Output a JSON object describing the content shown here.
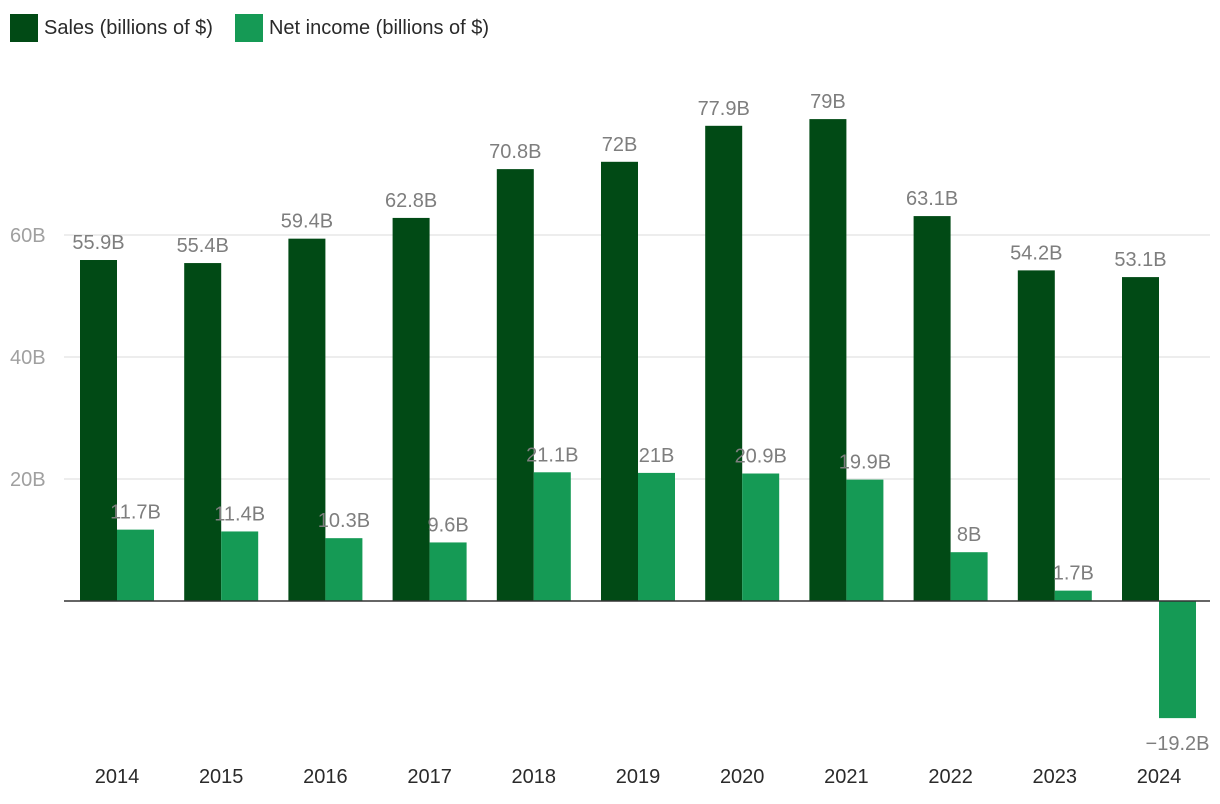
{
  "chart_data": {
    "type": "bar",
    "categories": [
      "2014",
      "2015",
      "2016",
      "2017",
      "2018",
      "2019",
      "2020",
      "2021",
      "2022",
      "2023",
      "2024"
    ],
    "series": [
      {
        "name": "Sales (billions of $)",
        "color": "#014a15",
        "values": [
          55.9,
          55.4,
          59.4,
          62.8,
          70.8,
          72,
          77.9,
          79,
          63.1,
          54.2,
          53.1
        ],
        "labels": [
          "55.9B",
          "55.4B",
          "59.4B",
          "62.8B",
          "70.8B",
          "72B",
          "77.9B",
          "79B",
          "63.1B",
          "54.2B",
          "53.1B"
        ]
      },
      {
        "name": "Net income (billions of $)",
        "color": "#159a55",
        "values": [
          11.7,
          11.4,
          10.3,
          9.6,
          21.1,
          21,
          20.9,
          19.9,
          8,
          1.7,
          -19.2
        ],
        "labels": [
          "11.7B",
          "11.4B",
          "10.3B",
          "9.6B",
          "21.1B",
          "21B",
          "20.9B",
          "19.9B",
          "8B",
          "1.7B",
          "−19.2B"
        ]
      }
    ],
    "yticks": [
      {
        "value": 20,
        "label": "20B"
      },
      {
        "value": 40,
        "label": "40B"
      },
      {
        "value": 60,
        "label": "60B"
      }
    ],
    "ylim": [
      -22,
      87
    ],
    "grid": true,
    "legend": "top-left",
    "title": "",
    "xlabel": "",
    "ylabel": ""
  }
}
